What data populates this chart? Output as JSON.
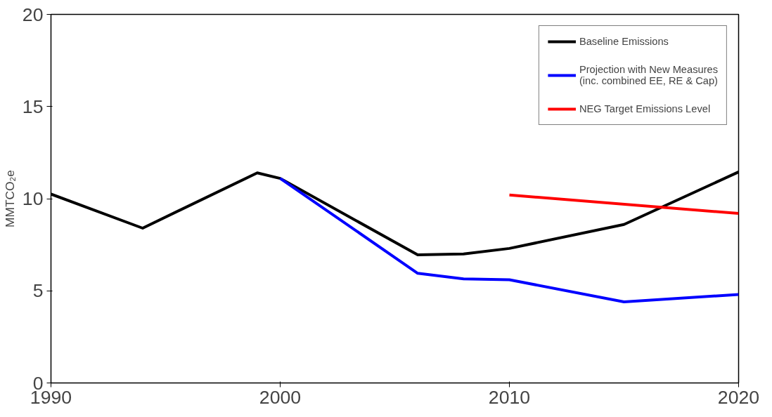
{
  "chart_data": {
    "type": "line",
    "ylabel": "MMTCO₂e",
    "xlim": [
      1990,
      2020
    ],
    "xticks": [
      1990,
      2000,
      2010,
      2020
    ],
    "ylim": [
      0,
      20
    ],
    "yticks": [
      0,
      5,
      10,
      15,
      20
    ],
    "grid": false,
    "legend": "top right",
    "marker": "none",
    "line_style": "solid",
    "series": [
      {
        "name": "Baseline Emissions",
        "color": "#000000",
        "x": [
          1990,
          1994,
          1999,
          2000,
          2006,
          2008,
          2010,
          2015,
          2020
        ],
        "values": [
          10.25,
          8.4,
          11.4,
          11.1,
          6.95,
          7.0,
          7.3,
          8.6,
          11.45
        ]
      },
      {
        "name": "Projection with New Measures\n(inc. combined EE, RE & Cap)",
        "color": "#0000ff",
        "x": [
          2000,
          2006,
          2008,
          2010,
          2015,
          2020
        ],
        "values": [
          11.1,
          5.95,
          5.65,
          5.6,
          4.4,
          4.8
        ]
      },
      {
        "name": "NEG Target Emissions Level",
        "color": "#ff0000",
        "x": [
          2010,
          2020
        ],
        "values": [
          10.2,
          9.2
        ]
      }
    ]
  }
}
